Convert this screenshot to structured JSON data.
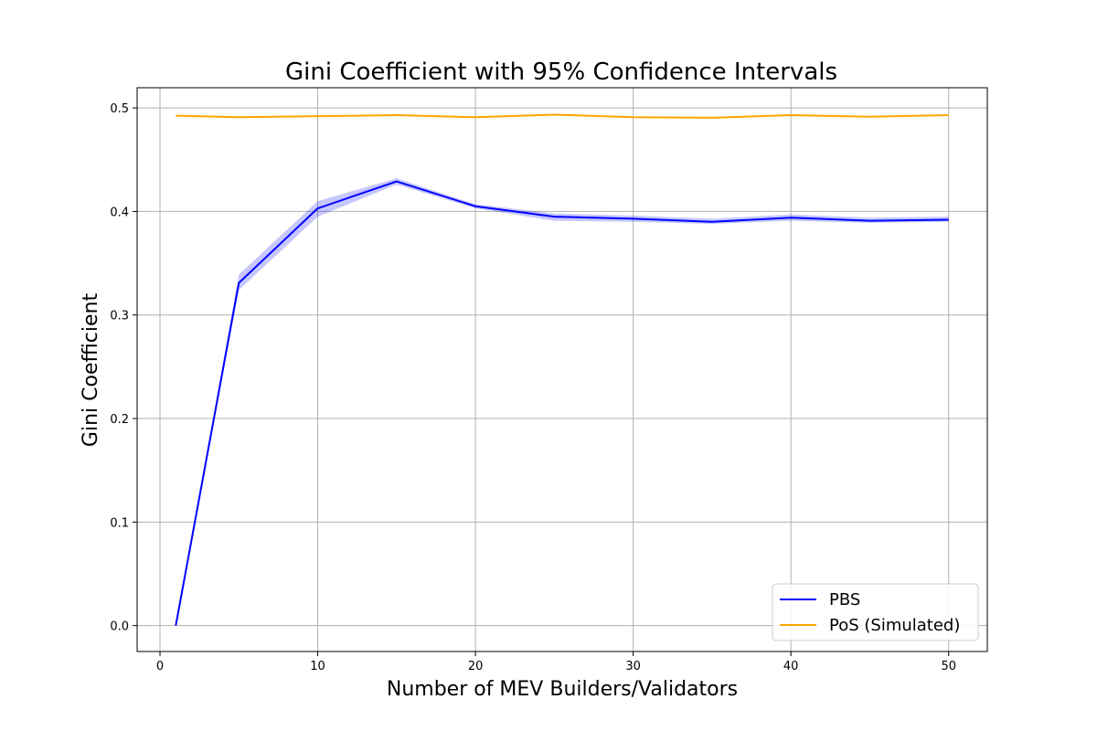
{
  "chart_data": {
    "type": "line",
    "title": "Gini Coefficient with 95% Confidence Intervals",
    "xlabel": "Number of MEV Builders/Validators",
    "ylabel": "Gini Coefficient",
    "xlim": [
      -1.45,
      52.45
    ],
    "ylim": [
      -0.025,
      0.5195
    ],
    "xticks": [
      0,
      10,
      20,
      30,
      40,
      50
    ],
    "yticks": [
      0.0,
      0.1,
      0.2,
      0.3,
      0.4,
      0.5
    ],
    "xtick_labels": [
      "0",
      "10",
      "20",
      "30",
      "40",
      "50"
    ],
    "ytick_labels": [
      "0.0",
      "0.1",
      "0.2",
      "0.3",
      "0.4",
      "0.5"
    ],
    "grid": true,
    "legend_position": "bottom-right",
    "x": [
      1,
      5,
      10,
      15,
      20,
      25,
      30,
      35,
      40,
      45,
      50
    ],
    "series": [
      {
        "name": "PBS",
        "color": "#0000ff",
        "values": [
          0.0,
          0.331,
          0.403,
          0.429,
          0.405,
          0.395,
          0.393,
          0.39,
          0.394,
          0.391,
          0.392
        ],
        "ci_lower": [
          0.0,
          0.324,
          0.395,
          0.426,
          0.403,
          0.391,
          0.39,
          0.388,
          0.391,
          0.389,
          0.39
        ],
        "ci_upper": [
          0.0,
          0.339,
          0.41,
          0.432,
          0.407,
          0.398,
          0.396,
          0.393,
          0.397,
          0.394,
          0.395
        ]
      },
      {
        "name": "PoS (Simulated)",
        "color": "#ffa500",
        "values": [
          0.4925,
          0.491,
          0.492,
          0.493,
          0.491,
          0.4935,
          0.491,
          0.4905,
          0.493,
          0.4915,
          0.493
        ]
      }
    ]
  }
}
